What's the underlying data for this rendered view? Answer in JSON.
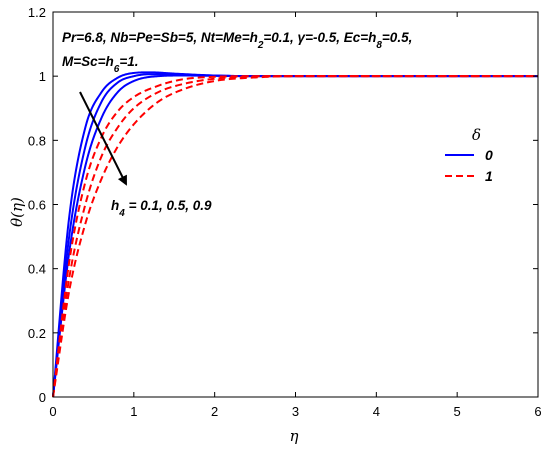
{
  "chart_data": {
    "type": "line",
    "xlabel": "η",
    "ylabel": "θ(η)",
    "xlim": [
      0,
      6
    ],
    "ylim": [
      0,
      1.2
    ],
    "xticks": [
      "0",
      "1",
      "2",
      "3",
      "4",
      "5",
      "6"
    ],
    "yticks": [
      "0",
      "0.2",
      "0.4",
      "0.6",
      "0.8",
      "1",
      "1.2"
    ],
    "grid": false,
    "params_line1_html": "Pr=6.8, Nb=Pe=Sb=5, Nt=Me=h<tspan baseline-shift=\"sub\" font-size=\"10\">2</tspan>=0.1, γ=-0.5, Ec=h<tspan baseline-shift=\"sub\" font-size=\"10\">8</tspan>=0.5,",
    "params_line2_html": "M=Sc=h<tspan baseline-shift=\"sub\" font-size=\"10\">6</tspan>=1.",
    "arrow_label_html": "h<tspan baseline-shift=\"sub\" font-size=\"10\">4</tspan> = 0.1, 0.5, 0.9",
    "legend": {
      "title": "δ",
      "entries": [
        {
          "label": "0",
          "color": "#0000ff",
          "dash": "solid"
        },
        {
          "label": "1",
          "color": "#ff0000",
          "dash": "dashed"
        }
      ],
      "placement": "right"
    },
    "series": [
      {
        "group": "0",
        "color": "#0000ff",
        "dash": "solid",
        "x": [
          0,
          0.2,
          0.4,
          0.6,
          0.8,
          1.0,
          1.2,
          1.5,
          2.0,
          2.5,
          3.0,
          6.0
        ],
        "y": [
          0,
          0.56,
          0.84,
          0.95,
          0.995,
          1.01,
          1.012,
          1.008,
          1.002,
          1.0,
          1.0,
          1.0
        ]
      },
      {
        "group": "0",
        "color": "#0000ff",
        "dash": "solid",
        "x": [
          0,
          0.2,
          0.4,
          0.6,
          0.8,
          1.0,
          1.2,
          1.5,
          2.0,
          2.5,
          3.0,
          6.0
        ],
        "y": [
          0,
          0.5,
          0.78,
          0.92,
          0.98,
          1.0,
          1.006,
          1.005,
          1.002,
          1.0,
          1.0,
          1.0
        ]
      },
      {
        "group": "0",
        "color": "#0000ff",
        "dash": "solid",
        "x": [
          0,
          0.2,
          0.4,
          0.6,
          0.8,
          1.0,
          1.3,
          1.6,
          2.0,
          2.5,
          3.0,
          6.0
        ],
        "y": [
          0,
          0.45,
          0.72,
          0.87,
          0.95,
          0.985,
          1.0,
          1.002,
          1.001,
          1.0,
          1.0,
          1.0
        ]
      },
      {
        "group": "1",
        "color": "#ff0000",
        "dash": "dashed",
        "x": [
          0,
          0.2,
          0.4,
          0.6,
          0.8,
          1.0,
          1.3,
          1.6,
          2.0,
          2.5,
          3.0,
          6.0
        ],
        "y": [
          0,
          0.42,
          0.67,
          0.81,
          0.89,
          0.935,
          0.97,
          0.99,
          0.998,
          1.0,
          1.0,
          1.0
        ]
      },
      {
        "group": "1",
        "color": "#ff0000",
        "dash": "dashed",
        "x": [
          0,
          0.2,
          0.4,
          0.6,
          0.8,
          1.0,
          1.3,
          1.6,
          2.0,
          2.5,
          3.0,
          6.0
        ],
        "y": [
          0,
          0.37,
          0.6,
          0.75,
          0.84,
          0.9,
          0.95,
          0.975,
          0.992,
          0.999,
          1.0,
          1.0
        ]
      },
      {
        "group": "1",
        "color": "#ff0000",
        "dash": "dashed",
        "x": [
          0,
          0.2,
          0.4,
          0.6,
          0.8,
          1.0,
          1.3,
          1.6,
          2.0,
          2.5,
          3.0,
          6.0
        ],
        "y": [
          0,
          0.33,
          0.54,
          0.68,
          0.78,
          0.85,
          0.92,
          0.958,
          0.985,
          0.996,
          1.0,
          1.0
        ]
      }
    ]
  }
}
